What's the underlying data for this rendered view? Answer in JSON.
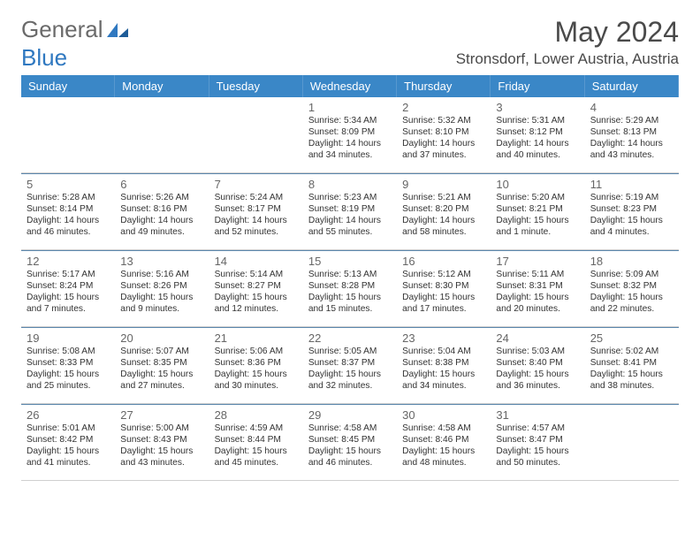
{
  "brand": {
    "part1": "General",
    "part2": "Blue"
  },
  "title": "May 2024",
  "location": "Stronsdorf, Lower Austria, Austria",
  "colors": {
    "header_bg": "#3a87c7",
    "header_text": "#ffffff",
    "week_border": "#5b87ad",
    "cell_border": "#d0d0d0",
    "text": "#333333",
    "daynum": "#666666"
  },
  "dayNames": [
    "Sunday",
    "Monday",
    "Tuesday",
    "Wednesday",
    "Thursday",
    "Friday",
    "Saturday"
  ],
  "weeks": [
    [
      null,
      null,
      null,
      {
        "n": "1",
        "sr": "5:34 AM",
        "ss": "8:09 PM",
        "dl": "14 hours and 34 minutes."
      },
      {
        "n": "2",
        "sr": "5:32 AM",
        "ss": "8:10 PM",
        "dl": "14 hours and 37 minutes."
      },
      {
        "n": "3",
        "sr": "5:31 AM",
        "ss": "8:12 PM",
        "dl": "14 hours and 40 minutes."
      },
      {
        "n": "4",
        "sr": "5:29 AM",
        "ss": "8:13 PM",
        "dl": "14 hours and 43 minutes."
      }
    ],
    [
      {
        "n": "5",
        "sr": "5:28 AM",
        "ss": "8:14 PM",
        "dl": "14 hours and 46 minutes."
      },
      {
        "n": "6",
        "sr": "5:26 AM",
        "ss": "8:16 PM",
        "dl": "14 hours and 49 minutes."
      },
      {
        "n": "7",
        "sr": "5:24 AM",
        "ss": "8:17 PM",
        "dl": "14 hours and 52 minutes."
      },
      {
        "n": "8",
        "sr": "5:23 AM",
        "ss": "8:19 PM",
        "dl": "14 hours and 55 minutes."
      },
      {
        "n": "9",
        "sr": "5:21 AM",
        "ss": "8:20 PM",
        "dl": "14 hours and 58 minutes."
      },
      {
        "n": "10",
        "sr": "5:20 AM",
        "ss": "8:21 PM",
        "dl": "15 hours and 1 minute."
      },
      {
        "n": "11",
        "sr": "5:19 AM",
        "ss": "8:23 PM",
        "dl": "15 hours and 4 minutes."
      }
    ],
    [
      {
        "n": "12",
        "sr": "5:17 AM",
        "ss": "8:24 PM",
        "dl": "15 hours and 7 minutes."
      },
      {
        "n": "13",
        "sr": "5:16 AM",
        "ss": "8:26 PM",
        "dl": "15 hours and 9 minutes."
      },
      {
        "n": "14",
        "sr": "5:14 AM",
        "ss": "8:27 PM",
        "dl": "15 hours and 12 minutes."
      },
      {
        "n": "15",
        "sr": "5:13 AM",
        "ss": "8:28 PM",
        "dl": "15 hours and 15 minutes."
      },
      {
        "n": "16",
        "sr": "5:12 AM",
        "ss": "8:30 PM",
        "dl": "15 hours and 17 minutes."
      },
      {
        "n": "17",
        "sr": "5:11 AM",
        "ss": "8:31 PM",
        "dl": "15 hours and 20 minutes."
      },
      {
        "n": "18",
        "sr": "5:09 AM",
        "ss": "8:32 PM",
        "dl": "15 hours and 22 minutes."
      }
    ],
    [
      {
        "n": "19",
        "sr": "5:08 AM",
        "ss": "8:33 PM",
        "dl": "15 hours and 25 minutes."
      },
      {
        "n": "20",
        "sr": "5:07 AM",
        "ss": "8:35 PM",
        "dl": "15 hours and 27 minutes."
      },
      {
        "n": "21",
        "sr": "5:06 AM",
        "ss": "8:36 PM",
        "dl": "15 hours and 30 minutes."
      },
      {
        "n": "22",
        "sr": "5:05 AM",
        "ss": "8:37 PM",
        "dl": "15 hours and 32 minutes."
      },
      {
        "n": "23",
        "sr": "5:04 AM",
        "ss": "8:38 PM",
        "dl": "15 hours and 34 minutes."
      },
      {
        "n": "24",
        "sr": "5:03 AM",
        "ss": "8:40 PM",
        "dl": "15 hours and 36 minutes."
      },
      {
        "n": "25",
        "sr": "5:02 AM",
        "ss": "8:41 PM",
        "dl": "15 hours and 38 minutes."
      }
    ],
    [
      {
        "n": "26",
        "sr": "5:01 AM",
        "ss": "8:42 PM",
        "dl": "15 hours and 41 minutes."
      },
      {
        "n": "27",
        "sr": "5:00 AM",
        "ss": "8:43 PM",
        "dl": "15 hours and 43 minutes."
      },
      {
        "n": "28",
        "sr": "4:59 AM",
        "ss": "8:44 PM",
        "dl": "15 hours and 45 minutes."
      },
      {
        "n": "29",
        "sr": "4:58 AM",
        "ss": "8:45 PM",
        "dl": "15 hours and 46 minutes."
      },
      {
        "n": "30",
        "sr": "4:58 AM",
        "ss": "8:46 PM",
        "dl": "15 hours and 48 minutes."
      },
      {
        "n": "31",
        "sr": "4:57 AM",
        "ss": "8:47 PM",
        "dl": "15 hours and 50 minutes."
      },
      null
    ]
  ],
  "labels": {
    "sunrise": "Sunrise:",
    "sunset": "Sunset:",
    "daylight": "Daylight:"
  }
}
